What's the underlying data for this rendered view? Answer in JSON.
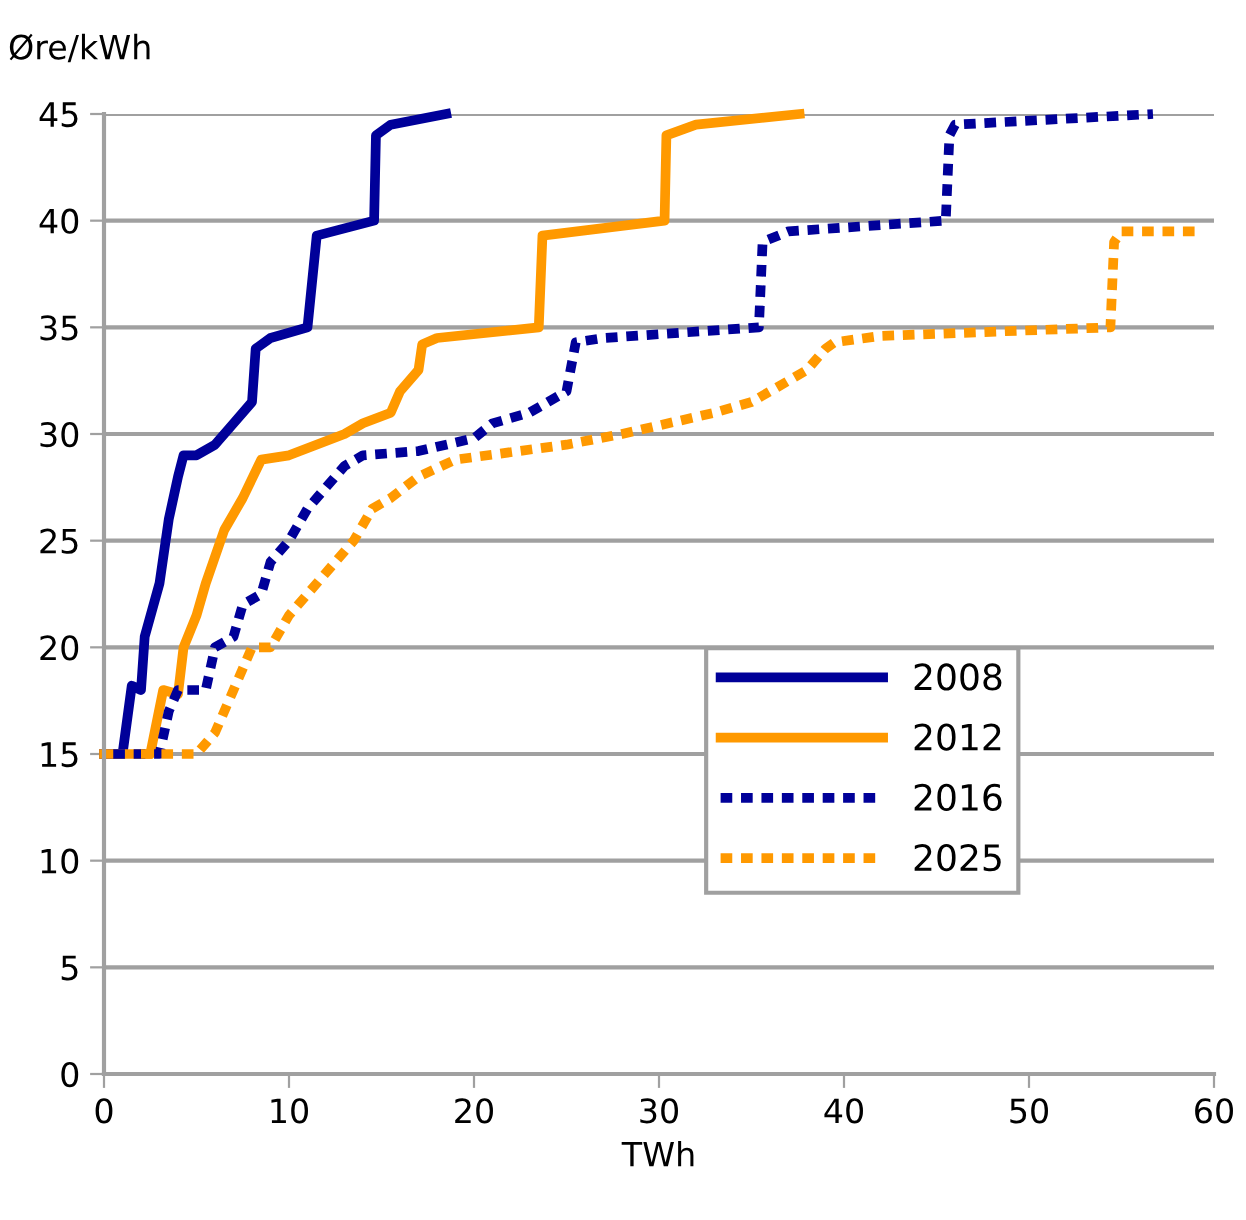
{
  "chart_data": {
    "type": "line",
    "xlabel": "TWh",
    "ylabel": "Øre/kWh",
    "xlim": [
      0,
      60
    ],
    "xticks": [
      0,
      10,
      20,
      30,
      40,
      50,
      60
    ],
    "ylim": [
      0,
      45
    ],
    "yticks": [
      0,
      5,
      10,
      15,
      20,
      25,
      30,
      35,
      40,
      45
    ],
    "grid": "y",
    "legend": "bottom right",
    "marker": "none",
    "series": [
      {
        "name": "2008",
        "color": "#000099",
        "line_style": "solid",
        "x": [
          0,
          1,
          1.5,
          2,
          2.2,
          3,
          3.5,
          4,
          4.3,
          5,
          6,
          7,
          8,
          8.2,
          9,
          11,
          11.5,
          14.6,
          14.7,
          15.5,
          18.5
        ],
        "values": [
          15,
          15,
          18.2,
          18,
          20.5,
          23,
          26,
          28,
          29,
          29,
          29.5,
          30.5,
          31.5,
          34,
          34.5,
          35,
          39.3,
          40,
          44,
          44.5,
          45
        ]
      },
      {
        "name": "2012",
        "color": "#ff9900",
        "line_style": "solid",
        "x": [
          0,
          2.5,
          3.2,
          4,
          4.3,
          5,
          5.5,
          6.5,
          7.5,
          8.5,
          10,
          13,
          14,
          15.5,
          16,
          17,
          17.2,
          18,
          23.5,
          23.7,
          30.3,
          30.4,
          32,
          37.6
        ],
        "values": [
          15,
          15,
          18,
          17.8,
          20,
          21.5,
          23,
          25.5,
          27,
          28.8,
          29,
          30,
          30.5,
          31,
          32,
          33,
          34.2,
          34.5,
          35,
          39.3,
          40,
          44,
          44.5,
          45
        ]
      },
      {
        "name": "2016",
        "color": "#000099",
        "line_style": "dashed",
        "x": [
          0.5,
          3,
          3.5,
          4,
          5.5,
          6,
          7,
          7.5,
          8.5,
          9,
          10,
          11,
          11.5,
          12,
          13,
          14,
          17,
          20,
          21,
          23,
          24,
          25,
          25.5,
          27,
          35.4,
          35.6,
          37,
          45.5,
          45.7,
          46,
          56.7
        ],
        "values": [
          15,
          15,
          17,
          18,
          18,
          20,
          20.5,
          22,
          22.5,
          24,
          25,
          26.5,
          27,
          27.5,
          28.5,
          29,
          29.2,
          29.8,
          30.5,
          31,
          31.5,
          32,
          34.3,
          34.5,
          35,
          39,
          39.5,
          40,
          44,
          44.5,
          45
        ]
      },
      {
        "name": "2025",
        "color": "#ff9900",
        "line_style": "dashed",
        "x": [
          2,
          5,
          6,
          7,
          8,
          9,
          10,
          11,
          12.5,
          13.5,
          14.5,
          15.5,
          17,
          19,
          25,
          28,
          33,
          35,
          38,
          39,
          39.5,
          42,
          54.4,
          54.6,
          55,
          59
        ],
        "values": [
          15,
          15,
          16,
          18,
          20,
          20,
          21.5,
          22.5,
          24,
          25,
          26.5,
          27,
          28,
          28.8,
          29.5,
          30,
          31,
          31.5,
          33,
          34,
          34.3,
          34.6,
          35,
          39,
          39.5,
          39.5
        ]
      }
    ]
  }
}
